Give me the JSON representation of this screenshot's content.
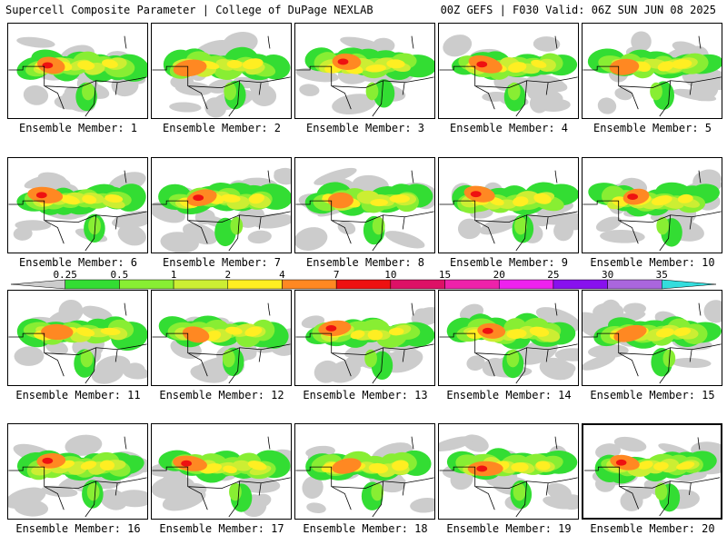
{
  "header": {
    "title": "Supercell Composite Parameter | College of DuPage NEXLAB",
    "run_info": "00Z GEFS | F030 Valid: 06Z SUN JUN 08 2025"
  },
  "members": [
    {
      "label": "Ensemble Member: 1"
    },
    {
      "label": "Ensemble Member: 2"
    },
    {
      "label": "Ensemble Member: 3"
    },
    {
      "label": "Ensemble Member: 4"
    },
    {
      "label": "Ensemble Member: 5"
    },
    {
      "label": "Ensemble Member: 6"
    },
    {
      "label": "Ensemble Member: 7"
    },
    {
      "label": "Ensemble Member: 8"
    },
    {
      "label": "Ensemble Member: 9"
    },
    {
      "label": "Ensemble Member: 10"
    },
    {
      "label": "Ensemble Member: 11"
    },
    {
      "label": "Ensemble Member: 12"
    },
    {
      "label": "Ensemble Member: 13"
    },
    {
      "label": "Ensemble Member: 14"
    },
    {
      "label": "Ensemble Member: 15"
    },
    {
      "label": "Ensemble Member: 16"
    },
    {
      "label": "Ensemble Member: 17"
    },
    {
      "label": "Ensemble Member: 18"
    },
    {
      "label": "Ensemble Member: 19"
    },
    {
      "label": "Ensemble Member: 20"
    }
  ],
  "selected_member": "20",
  "colorbar": {
    "labels": [
      "0.25",
      "0.5",
      "1",
      "2",
      "4",
      "7",
      "10",
      "15",
      "20",
      "25",
      "30",
      "35"
    ],
    "colors": [
      "#cccccc",
      "#33dd33",
      "#88ee33",
      "#ccee33",
      "#ffee22",
      "#ff8822",
      "#ee1111",
      "#dd1166",
      "#ee22aa",
      "#ee22ee",
      "#8811ee",
      "#aa66dd",
      "#33dddd"
    ]
  }
}
